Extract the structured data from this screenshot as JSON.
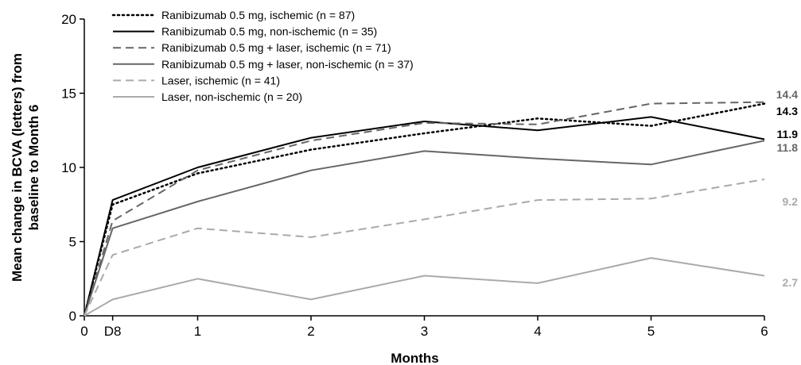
{
  "chart_data": {
    "type": "line",
    "xlabel": "Months",
    "ylabel": "Mean change in BCVA (letters) from baseline to Month 6",
    "ylabel_lines": [
      "Mean change in BCVA (letters) from",
      "baseline to Month 6"
    ],
    "ylim": [
      0,
      20
    ],
    "xlim": [
      0,
      6
    ],
    "y_ticks": [
      0,
      5,
      10,
      15,
      20
    ],
    "x_ticks": [
      {
        "value": 0,
        "label": "0"
      },
      {
        "value": 0.25,
        "label": "D8"
      },
      {
        "value": 1,
        "label": "1"
      },
      {
        "value": 2,
        "label": "2"
      },
      {
        "value": 3,
        "label": "3"
      },
      {
        "value": 4,
        "label": "4"
      },
      {
        "value": 5,
        "label": "5"
      },
      {
        "value": 6,
        "label": "6"
      }
    ],
    "x": [
      0,
      0.25,
      1,
      2,
      3,
      4,
      5,
      6
    ],
    "grid": false,
    "legend_position": "top-left",
    "series": [
      {
        "name": "Ranibizumab 0.5 mg, ischemic (n = 87)",
        "values": [
          0,
          7.5,
          9.6,
          11.2,
          12.3,
          13.3,
          12.8,
          14.3
        ],
        "color": "#000000",
        "dash": "dotted",
        "end_label": "14.3",
        "end_label_color": "#000000"
      },
      {
        "name": "Ranibizumab 0.5 mg, non-ischemic (n = 35)",
        "values": [
          0,
          7.8,
          10.0,
          12.0,
          13.1,
          12.5,
          13.4,
          11.9
        ],
        "color": "#000000",
        "dash": "solid",
        "end_label": "11.9",
        "end_label_color": "#000000"
      },
      {
        "name": "Ranibizumab 0.5 mg + laser, ischemic (n = 71)",
        "values": [
          0,
          6.4,
          9.8,
          11.8,
          13.0,
          12.9,
          14.3,
          14.4
        ],
        "color": "#666666",
        "dash": "dashed",
        "end_label": "14.4",
        "end_label_color": "#666666"
      },
      {
        "name": "Ranibizumab 0.5 mg + laser, non-ischemic (n = 37)",
        "values": [
          0,
          5.9,
          7.7,
          9.8,
          11.1,
          10.6,
          10.2,
          11.8
        ],
        "color": "#666666",
        "dash": "solid",
        "end_label": "11.8",
        "end_label_color": "#666666"
      },
      {
        "name": "Laser, ischemic (n = 41)",
        "values": [
          0,
          4.1,
          5.9,
          5.3,
          6.5,
          7.8,
          7.9,
          9.2
        ],
        "color": "#aaaaaa",
        "dash": "dashed",
        "end_label": "9.2",
        "end_label_color": "#aaaaaa"
      },
      {
        "name": "Laser, non-ischemic (n = 20)",
        "values": [
          0,
          1.1,
          2.5,
          1.1,
          2.7,
          2.2,
          3.9,
          2.7
        ],
        "color": "#aaaaaa",
        "dash": "solid",
        "end_label": "2.7",
        "end_label_color": "#aaaaaa"
      }
    ]
  }
}
